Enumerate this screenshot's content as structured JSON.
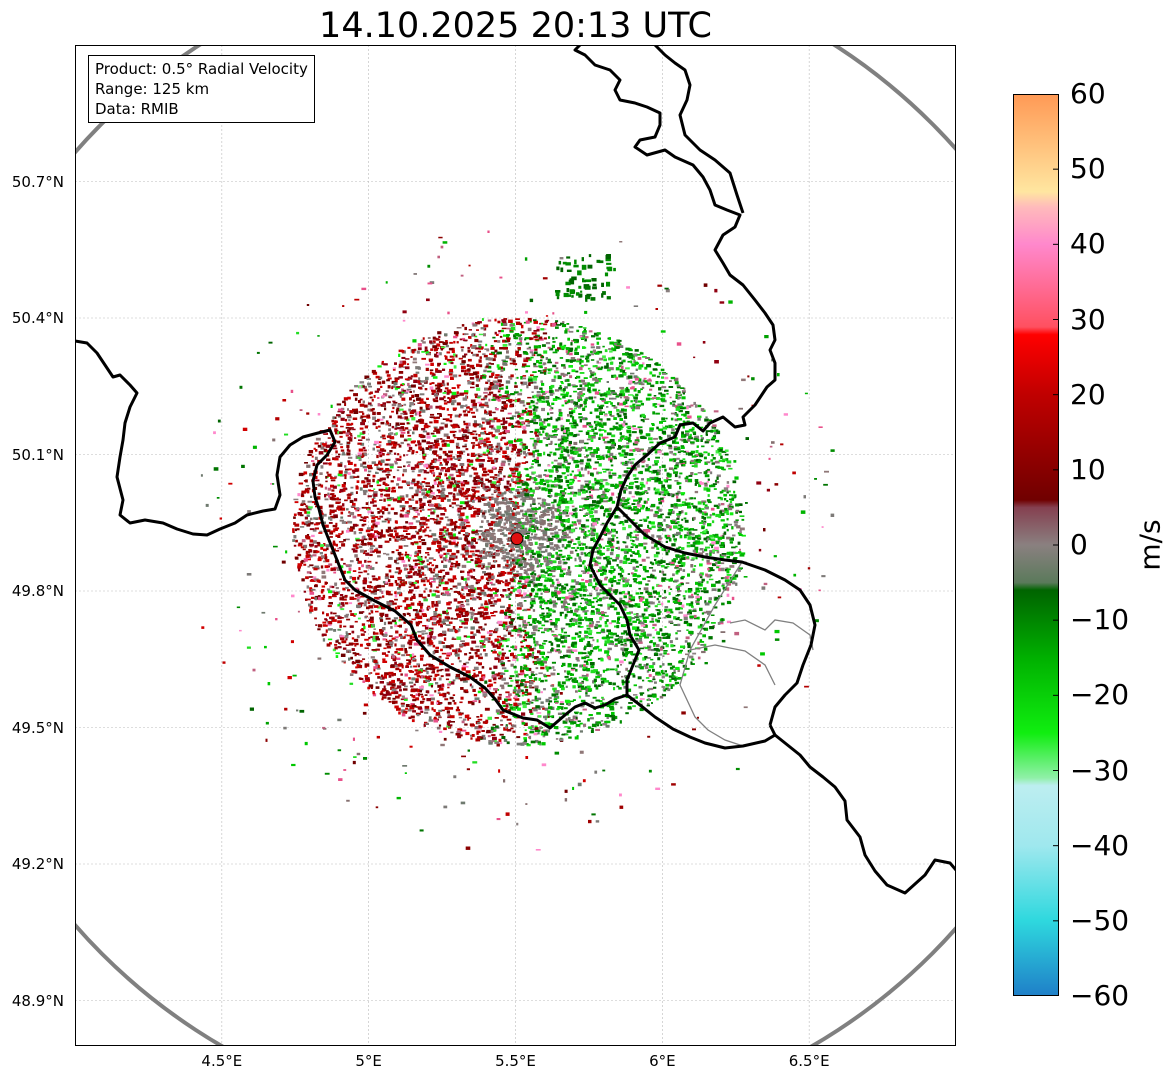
{
  "title": "14.10.2025 20:13 UTC",
  "info_box": {
    "product": "Product: 0.5° Radial Velocity",
    "range": "Range: 125 km",
    "data": "Data: RMIB"
  },
  "map": {
    "lon_range": [
      4.0,
      7.0
    ],
    "lat_range": [
      48.8,
      51.0
    ],
    "radar_site": {
      "lon": 5.505,
      "lat": 49.915
    },
    "lat_ticks": [
      {
        "value": 50.7,
        "label": "50.7°N"
      },
      {
        "value": 50.4,
        "label": "50.4°N"
      },
      {
        "value": 50.1,
        "label": "50.1°N"
      },
      {
        "value": 49.8,
        "label": "49.8°N"
      },
      {
        "value": 49.5,
        "label": "49.5°N"
      },
      {
        "value": 49.2,
        "label": "49.2°N"
      },
      {
        "value": 48.9,
        "label": "48.9°N"
      }
    ],
    "lon_ticks": [
      {
        "value": 4.5,
        "label": "4.5°E"
      },
      {
        "value": 5.0,
        "label": "5°E"
      },
      {
        "value": 5.5,
        "label": "5.5°E"
      },
      {
        "value": 6.0,
        "label": "6°E"
      },
      {
        "value": 6.5,
        "label": "6.5°E"
      }
    ],
    "colors": {
      "range_ring": "#808080",
      "country_border": "#000000",
      "region_border": "#808080",
      "grid": "#bbbbbb",
      "radar_marker": "#e01010"
    }
  },
  "colorbar": {
    "unit": "m/s",
    "min": -60,
    "max": 60,
    "ticks": [
      {
        "value": 60,
        "label": "60"
      },
      {
        "value": 50,
        "label": "50"
      },
      {
        "value": 40,
        "label": "40"
      },
      {
        "value": 30,
        "label": "30"
      },
      {
        "value": 20,
        "label": "20"
      },
      {
        "value": 10,
        "label": "10"
      },
      {
        "value": 0,
        "label": "0"
      },
      {
        "value": -10,
        "label": "−10"
      },
      {
        "value": -20,
        "label": "−20"
      },
      {
        "value": -30,
        "label": "−30"
      },
      {
        "value": -40,
        "label": "−40"
      },
      {
        "value": -50,
        "label": "−50"
      },
      {
        "value": -60,
        "label": "−60"
      }
    ],
    "color_stops": [
      {
        "value": -60,
        "color": "#1f7fc8"
      },
      {
        "value": -50,
        "color": "#2ed8de"
      },
      {
        "value": -40,
        "color": "#9fe8ee"
      },
      {
        "value": -32,
        "color": "#bdeef0"
      },
      {
        "value": -31,
        "color": "#90f0a8"
      },
      {
        "value": -25,
        "color": "#10ee10"
      },
      {
        "value": -15,
        "color": "#00b000"
      },
      {
        "value": -6,
        "color": "#006400"
      },
      {
        "value": -5,
        "color": "#5b7a5b"
      },
      {
        "value": 0,
        "color": "#8a8080"
      },
      {
        "value": 5,
        "color": "#854050"
      },
      {
        "value": 6,
        "color": "#700000"
      },
      {
        "value": 20,
        "color": "#c00000"
      },
      {
        "value": 28,
        "color": "#ff0000"
      },
      {
        "value": 29,
        "color": "#ff5060"
      },
      {
        "value": 40,
        "color": "#ff88cc"
      },
      {
        "value": 45,
        "color": "#ffbbbb"
      },
      {
        "value": 47,
        "color": "#ffe6a0"
      },
      {
        "value": 60,
        "color": "#ff9955"
      }
    ]
  }
}
